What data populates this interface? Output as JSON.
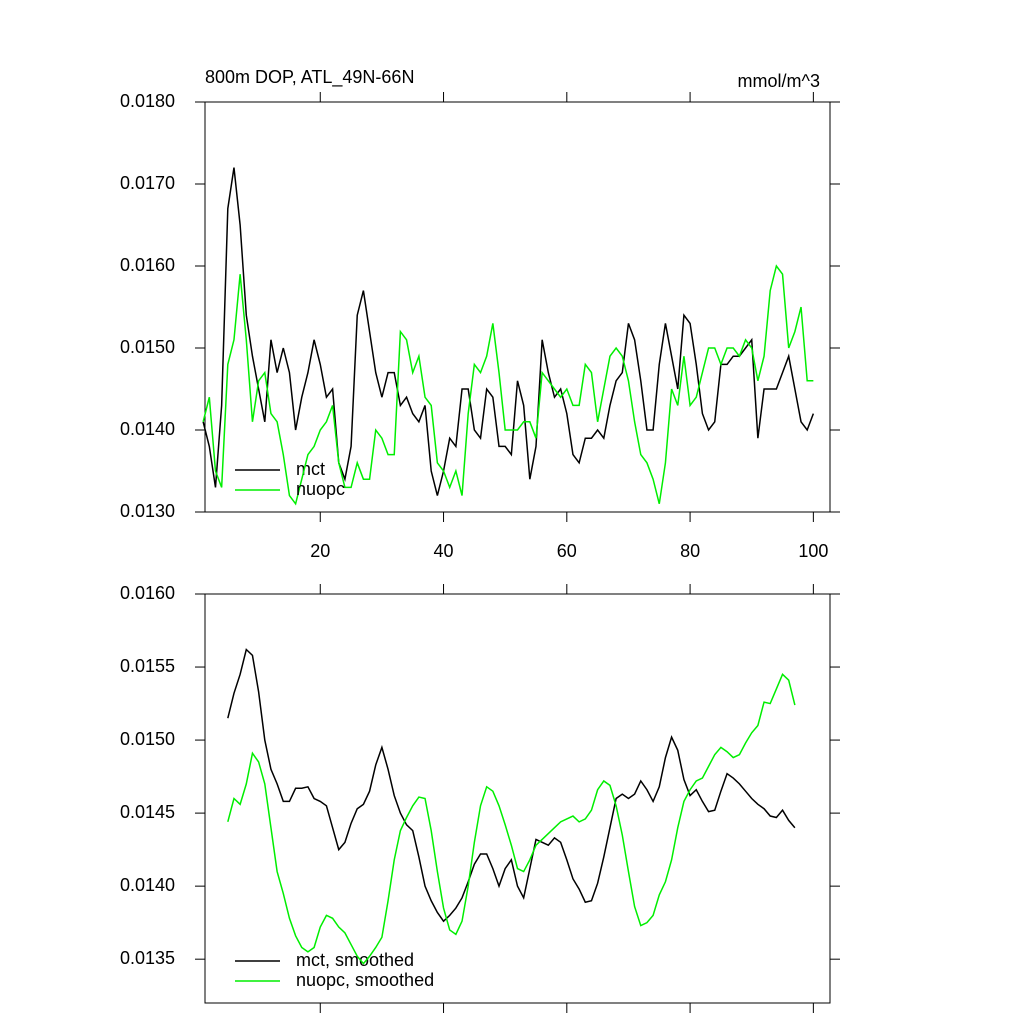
{
  "chart_data": [
    {
      "type": "line",
      "title": "800m DOP, ATL_49N-66N",
      "units": "mmol/m^3",
      "x": [
        1,
        2,
        3,
        4,
        5,
        6,
        7,
        8,
        9,
        10,
        11,
        12,
        13,
        14,
        15,
        16,
        17,
        18,
        19,
        20,
        21,
        22,
        23,
        24,
        25,
        26,
        27,
        28,
        29,
        30,
        31,
        32,
        33,
        34,
        35,
        36,
        37,
        38,
        39,
        40,
        41,
        42,
        43,
        44,
        45,
        46,
        47,
        48,
        49,
        50,
        51,
        52,
        53,
        54,
        55,
        56,
        57,
        58,
        59,
        60,
        61,
        62,
        63,
        64,
        65,
        66,
        67,
        68,
        69,
        70,
        71,
        72,
        73,
        74,
        75,
        76,
        77,
        78,
        79,
        80,
        81,
        82,
        83,
        84,
        85,
        86,
        87,
        88,
        89,
        90,
        91,
        92,
        93,
        94,
        95,
        96,
        97,
        98,
        99,
        100
      ],
      "series": [
        {
          "name": "mct",
          "color": "#000000",
          "values": [
            0.0141,
            0.0138,
            0.0133,
            0.0143,
            0.0167,
            0.0172,
            0.0165,
            0.0154,
            0.0149,
            0.0145,
            0.0141,
            0.0151,
            0.0147,
            0.015,
            0.0147,
            0.014,
            0.0144,
            0.0147,
            0.0151,
            0.0148,
            0.0144,
            0.0145,
            0.0136,
            0.0134,
            0.0138,
            0.0154,
            0.0157,
            0.0152,
            0.0147,
            0.0144,
            0.0147,
            0.0147,
            0.0143,
            0.0144,
            0.0142,
            0.0141,
            0.0143,
            0.0135,
            0.0132,
            0.0135,
            0.0139,
            0.0138,
            0.0145,
            0.0145,
            0.014,
            0.0139,
            0.0145,
            0.0144,
            0.0138,
            0.0138,
            0.0137,
            0.0146,
            0.0143,
            0.0134,
            0.0138,
            0.0151,
            0.0147,
            0.0144,
            0.0145,
            0.0142,
            0.0137,
            0.0136,
            0.0139,
            0.0139,
            0.014,
            0.0139,
            0.0143,
            0.0146,
            0.0147,
            0.0153,
            0.0151,
            0.0146,
            0.014,
            0.014,
            0.0148,
            0.0153,
            0.0149,
            0.0145,
            0.0154,
            0.0153,
            0.0148,
            0.0142,
            0.014,
            0.0141,
            0.0148,
            0.0148,
            0.0149,
            0.0149,
            0.015,
            0.0151,
            0.0139,
            0.0145,
            0.0145,
            0.0145,
            0.0147,
            0.0149,
            0.0145,
            0.0141,
            0.014,
            0.0142
          ]
        },
        {
          "name": "nuopc",
          "color": "#00ee00",
          "values": [
            0.0141,
            0.0144,
            0.0135,
            0.0133,
            0.0148,
            0.0151,
            0.0159,
            0.0151,
            0.0141,
            0.0146,
            0.0147,
            0.0142,
            0.0141,
            0.0137,
            0.0132,
            0.0131,
            0.0134,
            0.0137,
            0.0138,
            0.014,
            0.0141,
            0.0143,
            0.0136,
            0.0133,
            0.0133,
            0.0136,
            0.0134,
            0.0134,
            0.014,
            0.0139,
            0.0137,
            0.0137,
            0.0152,
            0.0151,
            0.0147,
            0.0149,
            0.0144,
            0.0143,
            0.0136,
            0.0135,
            0.0133,
            0.0135,
            0.0132,
            0.0142,
            0.0148,
            0.0147,
            0.0149,
            0.0153,
            0.0147,
            0.014,
            0.014,
            0.014,
            0.0141,
            0.0141,
            0.0139,
            0.0147,
            0.0146,
            0.0145,
            0.0144,
            0.0145,
            0.0143,
            0.0143,
            0.0148,
            0.0147,
            0.0141,
            0.0145,
            0.0149,
            0.015,
            0.0149,
            0.0146,
            0.0141,
            0.0137,
            0.0136,
            0.0134,
            0.0131,
            0.0136,
            0.0145,
            0.0143,
            0.0149,
            0.0143,
            0.0144,
            0.0147,
            0.015,
            0.015,
            0.0148,
            0.015,
            0.015,
            0.0149,
            0.0151,
            0.015,
            0.0146,
            0.0149,
            0.0157,
            0.016,
            0.0159,
            0.015,
            0.0152,
            0.0155,
            0.0146,
            0.0146
          ]
        }
      ],
      "xlim": [
        1.3,
        102.7
      ],
      "xticks": [
        20,
        40,
        60,
        80,
        100
      ],
      "ylim": [
        0.013,
        0.018
      ],
      "yticks": [
        {
          "value": 0.013,
          "label": "0.0130"
        },
        {
          "value": 0.014,
          "label": "0.0140"
        },
        {
          "value": 0.015,
          "label": "0.0150"
        },
        {
          "value": 0.016,
          "label": "0.0160"
        },
        {
          "value": 0.017,
          "label": "0.0170"
        },
        {
          "value": 0.018,
          "label": "0.0180"
        }
      ],
      "legend": "lower left"
    },
    {
      "type": "line",
      "x": [
        5,
        6,
        7,
        8,
        9,
        10,
        11,
        12,
        13,
        14,
        15,
        16,
        17,
        18,
        19,
        20,
        21,
        22,
        23,
        24,
        25,
        26,
        27,
        28,
        29,
        30,
        31,
        32,
        33,
        34,
        35,
        36,
        37,
        38,
        39,
        40,
        41,
        42,
        43,
        44,
        45,
        46,
        47,
        48,
        49,
        50,
        51,
        52,
        53,
        54,
        55,
        56,
        57,
        58,
        59,
        60,
        61,
        62,
        63,
        64,
        65,
        66,
        67,
        68,
        69,
        70,
        71,
        72,
        73,
        74,
        75,
        76,
        77,
        78,
        79,
        80,
        81,
        82,
        83,
        84,
        85,
        86,
        87,
        88,
        89,
        90,
        91,
        92,
        93,
        94,
        95,
        96,
        97
      ],
      "series": [
        {
          "name": "mct, smoothed",
          "color": "#000000",
          "values": [
            0.01515,
            0.01532,
            0.01545,
            0.01562,
            0.01558,
            0.01533,
            0.015,
            0.0148,
            0.0147,
            0.01458,
            0.01458,
            0.01467,
            0.01467,
            0.01468,
            0.0146,
            0.01458,
            0.01455,
            0.0144,
            0.01425,
            0.0143,
            0.01443,
            0.01453,
            0.01456,
            0.01465,
            0.01483,
            0.01495,
            0.0148,
            0.01462,
            0.0145,
            0.01442,
            0.01438,
            0.0142,
            0.014,
            0.0139,
            0.01382,
            0.01376,
            0.0138,
            0.01385,
            0.01392,
            0.01403,
            0.01415,
            0.01422,
            0.01422,
            0.01412,
            0.014,
            0.01412,
            0.01418,
            0.014,
            0.01392,
            0.01412,
            0.01432,
            0.0143,
            0.01428,
            0.01433,
            0.0143,
            0.01418,
            0.01405,
            0.01398,
            0.01389,
            0.0139,
            0.01402,
            0.0142,
            0.0144,
            0.0146,
            0.01463,
            0.0146,
            0.01463,
            0.01472,
            0.01466,
            0.01458,
            0.01468,
            0.01488,
            0.01502,
            0.01493,
            0.01473,
            0.01462,
            0.01466,
            0.01458,
            0.01451,
            0.01452,
            0.01465,
            0.01477,
            0.01474,
            0.0147,
            0.01465,
            0.0146,
            0.01456,
            0.01453,
            0.01448,
            0.01447,
            0.01452,
            0.01445,
            0.0144
          ]
        },
        {
          "name": "nuopc, smoothed",
          "color": "#00ee00",
          "values": [
            0.01444,
            0.0146,
            0.01456,
            0.0147,
            0.01491,
            0.01485,
            0.0147,
            0.0144,
            0.0141,
            0.01395,
            0.01378,
            0.01366,
            0.01358,
            0.01355,
            0.01358,
            0.01372,
            0.0138,
            0.01378,
            0.01372,
            0.01368,
            0.0136,
            0.01352,
            0.01347,
            0.01352,
            0.01358,
            0.01365,
            0.0139,
            0.01418,
            0.01438,
            0.01447,
            0.01455,
            0.01461,
            0.0146,
            0.01438,
            0.0141,
            0.01385,
            0.0137,
            0.01367,
            0.01376,
            0.014,
            0.0143,
            0.01455,
            0.01468,
            0.01465,
            0.01455,
            0.01442,
            0.01428,
            0.01412,
            0.0141,
            0.01418,
            0.01428,
            0.01432,
            0.01436,
            0.0144,
            0.01444,
            0.01446,
            0.01448,
            0.01444,
            0.01446,
            0.01452,
            0.01466,
            0.01472,
            0.01469,
            0.01455,
            0.01435,
            0.0141,
            0.01386,
            0.01373,
            0.01375,
            0.0138,
            0.01394,
            0.01403,
            0.01418,
            0.0144,
            0.01458,
            0.01466,
            0.01472,
            0.01474,
            0.01482,
            0.0149,
            0.01495,
            0.01492,
            0.01488,
            0.0149,
            0.01498,
            0.01505,
            0.0151,
            0.01526,
            0.01525,
            0.01535,
            0.01545,
            0.01541,
            0.01524
          ]
        }
      ],
      "xlim": [
        1.3,
        102.7
      ],
      "xticks": [
        20,
        40,
        60,
        80,
        100
      ],
      "ylim": [
        0.0132,
        0.016
      ],
      "yticks": [
        {
          "value": 0.0135,
          "label": "0.0135"
        },
        {
          "value": 0.014,
          "label": "0.0140"
        },
        {
          "value": 0.0145,
          "label": "0.0145"
        },
        {
          "value": 0.015,
          "label": "0.0150"
        },
        {
          "value": 0.0155,
          "label": "0.0155"
        },
        {
          "value": 0.016,
          "label": "0.0160"
        }
      ],
      "legend": "lower left"
    }
  ]
}
